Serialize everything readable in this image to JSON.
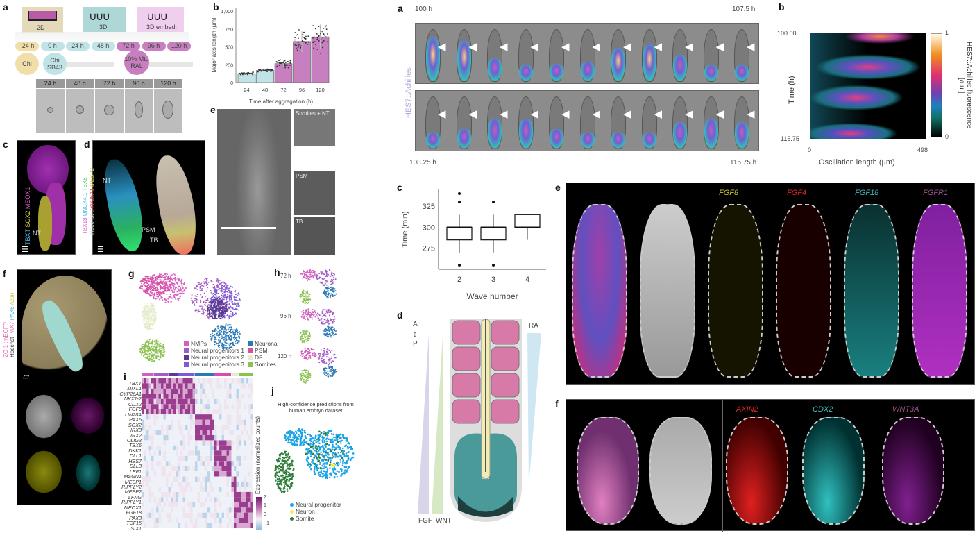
{
  "left": {
    "a": {
      "label": "a",
      "stages": [
        "2D",
        "3D",
        "3D embed."
      ],
      "timeline": [
        "-24 h",
        "0 h",
        "24 h",
        "48 h",
        "72 h",
        "96 h",
        "120 h"
      ],
      "treatments": [
        "Chi",
        "Chi SB43",
        "10% Mtg RAL"
      ],
      "strip": [
        "24 h",
        "48 h",
        "72 h",
        "96 h",
        "120 h"
      ]
    },
    "b": {
      "label": "b"
    },
    "c": {
      "label": "c",
      "markers": [
        "TBXT",
        "SOX2",
        "MEOX1"
      ],
      "nt": "NT"
    },
    "d": {
      "label": "d",
      "markers1": [
        "TBX18",
        "UNCX4.1",
        "TBX6"
      ],
      "markers2": [
        "Hoechst",
        "CYP26A1",
        "MESP2"
      ],
      "nt": "NT",
      "psm": "PSM",
      "tb": "TB"
    },
    "e": {
      "label": "e",
      "insets": [
        "Somites + NT",
        "PSM",
        "TB"
      ]
    },
    "f": {
      "label": "f",
      "markers1": [
        "ZO-1::mEGFP"
      ],
      "markers2": [
        "Hoechst",
        "PAX7",
        "PAX6",
        "Actin"
      ]
    },
    "g": {
      "label": "g",
      "legend": [
        {
          "name": "NMPs",
          "color": "#d45fc0"
        },
        {
          "name": "Neural progenitors 1",
          "color": "#a35cc6"
        },
        {
          "name": "Neural progenitors 2",
          "color": "#5a3b8f"
        },
        {
          "name": "Neural progenitors 3",
          "color": "#7b5bd6"
        },
        {
          "name": "Neuronal",
          "color": "#2a78b5"
        },
        {
          "name": "PSM",
          "color": "#d94fa8"
        },
        {
          "name": "DF",
          "color": "#e4eccb"
        },
        {
          "name": "Somites",
          "color": "#8cc152"
        }
      ]
    },
    "h": {
      "label": "h",
      "times": [
        "72 h",
        "96 h",
        "120 h"
      ]
    },
    "i": {
      "label": "i"
    },
    "j": {
      "label": "j",
      "title": "High-confidence predictions from human embryo dataset",
      "legend": [
        {
          "name": "Neural progenitor",
          "color": "#1aa3e8"
        },
        {
          "name": "Neuron",
          "color": "#f2ee5a"
        },
        {
          "name": "Somite",
          "color": "#2e7d3a"
        }
      ]
    }
  },
  "right": {
    "a": {
      "label": "a",
      "t_start_top": "100 h",
      "t_end_top": "107.5 h",
      "t_start_bottom": "108.25 h",
      "t_end_bottom": "115.75 h",
      "ylabel": "HES7::Achilles"
    },
    "b": {
      "label": "b"
    },
    "c": {
      "label": "c"
    },
    "d": {
      "label": "d",
      "a": "A",
      "p": "P",
      "ra": "RA",
      "fgf": "FGF",
      "wnt": "WNT"
    },
    "e": {
      "label": "e",
      "genes": [
        {
          "name": "FGF8",
          "color": "#c8c832"
        },
        {
          "name": "FGF4",
          "color": "#e02828"
        },
        {
          "name": "FGF18",
          "color": "#3cbcbc"
        },
        {
          "name": "FGFR1",
          "color": "#a0508c"
        }
      ]
    },
    "f": {
      "label": "f",
      "genes": [
        {
          "name": "AXIN2",
          "color": "#e02828"
        },
        {
          "name": "CDX2",
          "color": "#3cbcbc"
        },
        {
          "name": "WNT3A",
          "color": "#a0508c"
        }
      ]
    }
  },
  "chart_data": [
    {
      "id": "left-b",
      "type": "bar",
      "categories": [
        "24",
        "48",
        "72",
        "96",
        "120"
      ],
      "values": [
        125,
        170,
        265,
        575,
        640
      ],
      "errors": [
        15,
        15,
        40,
        150,
        170
      ],
      "colors": [
        "#bfe3e6",
        "#bfe3e6",
        "#c77fc0",
        "#c77fc0",
        "#c77fc0"
      ],
      "xlabel": "Time after aggregation (h)",
      "ylabel": "Major axis length (µm)",
      "ylim": [
        0,
        1050
      ],
      "yticks": [
        "0",
        "250",
        "500",
        "750",
        "1,000"
      ],
      "ytick_values": [
        0,
        250,
        500,
        750,
        1000
      ]
    },
    {
      "id": "right-b",
      "type": "heatmap",
      "xlabel": "Oscillation length (µm)",
      "ylabel": "Time (h)",
      "xticks": [
        "0",
        "498"
      ],
      "yticks": [
        "100.00",
        "115.75"
      ],
      "colorbar_label": "HES7::Achilles fluorescence [a.u.]",
      "colorbar_ticks": [
        "1",
        "0"
      ]
    },
    {
      "id": "right-c",
      "type": "box",
      "categories": [
        "2",
        "3",
        "4"
      ],
      "xlabel": "Wave number",
      "ylabel": "Time (min)",
      "yticks": [
        "275",
        "300",
        "325"
      ],
      "ytick_values": [
        275,
        300,
        325
      ],
      "ylim": [
        250,
        345
      ],
      "boxes": [
        {
          "q1": 285,
          "median": 300,
          "q3": 300,
          "min": 270,
          "max": 315,
          "outliers": [
            340,
            330,
            255
          ]
        },
        {
          "q1": 285,
          "median": 300,
          "q3": 300,
          "min": 270,
          "max": 315,
          "outliers": [
            330,
            255
          ]
        },
        {
          "q1": 300,
          "median": 300,
          "q3": 315,
          "min": 285,
          "max": 315,
          "outliers": []
        }
      ]
    },
    {
      "id": "left-i",
      "type": "heatmap",
      "genes": [
        "TBXT",
        "MIXL1",
        "CYP26A1",
        "NKX1-2",
        "CDX2",
        "FGF8",
        "LIN28A",
        "PAX6",
        "SOX2",
        "IRX3",
        "IRX2",
        "OLIG3",
        "TBX6",
        "DKK1",
        "DLL1",
        "HES7",
        "DLL3",
        "LEF1",
        "MSGN1",
        "MESP1",
        "RIPPLY2",
        "MESP2",
        "LFNG",
        "RIPPLY1",
        "MEOX1",
        "FGF18",
        "PAX3",
        "TCF15",
        "SIX1"
      ],
      "colorbar_label": "Expression (normalized counts)",
      "colorbar_ticks": [
        "2",
        "1",
        "0",
        "−1"
      ],
      "scale": [
        -1,
        2
      ]
    }
  ]
}
